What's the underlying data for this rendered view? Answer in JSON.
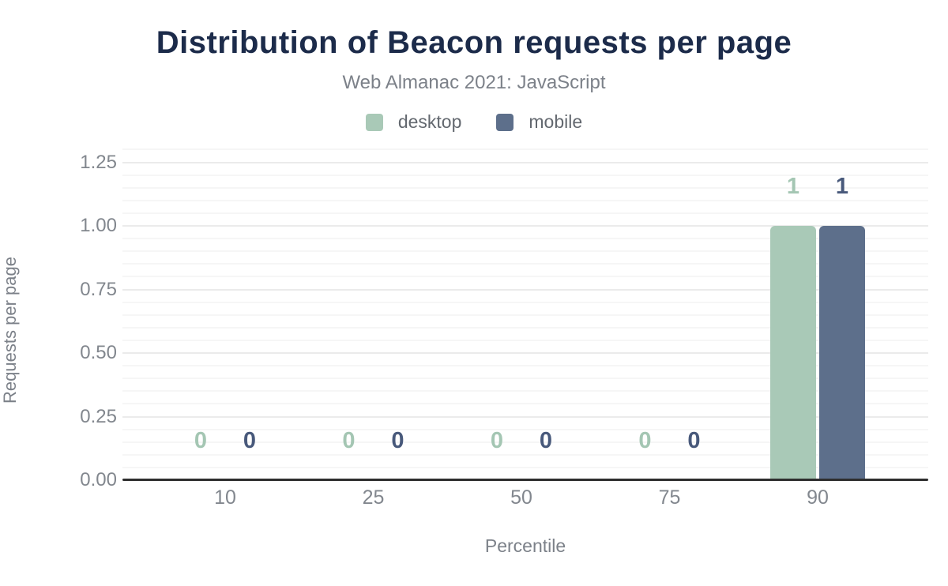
{
  "chart_data": {
    "type": "bar",
    "title": "Distribution of Beacon requests per page",
    "subtitle": "Web Almanac 2021: JavaScript",
    "xlabel": "Percentile",
    "ylabel": "Requests per page",
    "categories": [
      "10",
      "25",
      "50",
      "75",
      "90"
    ],
    "series": [
      {
        "name": "desktop",
        "color": "#a9c9b7",
        "label_color": "#a4c6b3",
        "values": [
          0,
          0,
          0,
          0,
          1
        ]
      },
      {
        "name": "mobile",
        "color": "#5d6f8b",
        "label_color": "#48597b",
        "values": [
          0,
          0,
          0,
          0,
          1
        ]
      }
    ],
    "y_ticks": [
      {
        "value": 0,
        "label": "0.00"
      },
      {
        "value": 0.25,
        "label": "0.25"
      },
      {
        "value": 0.5,
        "label": "0.50"
      },
      {
        "value": 0.75,
        "label": "0.75"
      },
      {
        "value": 1,
        "label": "1.00"
      },
      {
        "value": 1.25,
        "label": "1.25"
      }
    ],
    "ylim": [
      0,
      1.3
    ],
    "grid": {
      "major_step": 0.25,
      "minor_step": 0.05,
      "grid_on": true
    },
    "legend_position": "top",
    "colors": {
      "title": "#1c2b4a",
      "subtitle": "#7c8189",
      "axis_line": "#2e2e2e",
      "major_grid": "#ebebeb",
      "minor_grid": "#f6f6f6",
      "tick_text": "#82878e"
    }
  }
}
